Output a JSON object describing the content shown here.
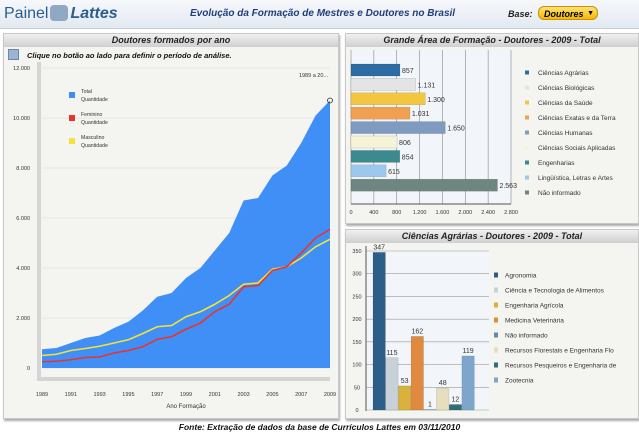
{
  "header": {
    "logo_a": "Painel",
    "logo_b": "Lattes",
    "title": "Evolução da Formação de Mestres e Doutores no Brasil",
    "base_label": "Base:",
    "base_value": "Doutores"
  },
  "footer": "Fonte: Extração de dados da base de Currículos Lattes em 03/11/2010",
  "colors": {
    "total": "#3f8ff7",
    "feminino": "#e8342c",
    "masculino": "#f5e23a"
  },
  "chart_data": [
    {
      "type": "area",
      "title": "Doutores formados por ano",
      "hint": "Clique no botão ao lado para definir o período de análise.",
      "range_label": "1989 a 20...",
      "xlabel": "Ano Formação",
      "ylim": [
        0,
        12000
      ],
      "yticks": [
        "0",
        "2.000",
        "4.000",
        "6.000",
        "8.000",
        "10.000",
        "12.000"
      ],
      "xticks": [
        "1989",
        "1991",
        "1993",
        "1995",
        "1997",
        "1999",
        "2001",
        "2003",
        "2005",
        "2007",
        "2009"
      ],
      "x": [
        1989,
        1990,
        1991,
        1992,
        1993,
        1994,
        1995,
        1996,
        1997,
        1998,
        1999,
        2000,
        2001,
        2002,
        2003,
        2004,
        2005,
        2006,
        2007,
        2008,
        2009
      ],
      "series": [
        {
          "name": "Total",
          "sub": "Quantidade",
          "values": [
            750,
            800,
            1000,
            1200,
            1300,
            1600,
            1850,
            2300,
            2850,
            3000,
            3600,
            4000,
            4700,
            5400,
            6700,
            6800,
            7700,
            8100,
            9000,
            10100,
            10700
          ]
        },
        {
          "name": "Feminino",
          "sub": "Quantidade",
          "values": [
            250,
            270,
            330,
            420,
            440,
            600,
            700,
            850,
            1150,
            1250,
            1550,
            1800,
            2250,
            2550,
            3250,
            3300,
            3900,
            4050,
            4600,
            5200,
            5550
          ]
        },
        {
          "name": "Masculino",
          "sub": "Quantidade",
          "values": [
            500,
            550,
            700,
            780,
            870,
            1000,
            1130,
            1380,
            1650,
            1700,
            2050,
            2250,
            2550,
            2900,
            3350,
            3400,
            3950,
            4050,
            4400,
            4850,
            5150
          ]
        }
      ]
    },
    {
      "type": "bar",
      "title": "Grande Área de Formação - Doutores - 2009 - Total",
      "orientation": "horizontal",
      "xlim": [
        0,
        2800
      ],
      "xticks": [
        "0",
        "400",
        "800",
        "1.200",
        "1.600",
        "2.000",
        "2.400",
        "2.800"
      ],
      "categories": [
        "Ciências Agrárias",
        "Ciências Biológicas",
        "Ciências da Saúde",
        "Ciências Exatas e da Terra",
        "Ciências Humanas",
        "Ciências Sociais Aplicadas",
        "Engenharias",
        "Lingüística, Letras e Artes",
        "Não informado"
      ],
      "values": [
        857,
        1131,
        1300,
        1031,
        1650,
        806,
        854,
        615,
        2563
      ],
      "labels": [
        "857",
        "1.131",
        "1.300",
        "1.031",
        "1.650",
        "806",
        "854",
        "615",
        "2.563"
      ],
      "colors": [
        "#2e6da4",
        "#e4e4e4",
        "#f3c640",
        "#f0a050",
        "#7f9cc0",
        "#f6f3d6",
        "#3d8a8e",
        "#9cc8ee",
        "#6f8580"
      ]
    },
    {
      "type": "bar",
      "title": "Ciências Agrárias - Doutores - 2009 - Total",
      "ylim": [
        0,
        350
      ],
      "yticks": [
        "0",
        "50",
        "100",
        "150",
        "200",
        "250",
        "300",
        "350"
      ],
      "categories": [
        "Agronomia",
        "Ciência e Tecnologia de Alimentos",
        "Engenharia Agrícola",
        "Medicina Veterinária",
        "Não informado",
        "Recursos Florestais e Engenharia Flo",
        "Recursos Pesqueiros e Engenharia de",
        "Zootecnia"
      ],
      "values": [
        347,
        115,
        53,
        162,
        1,
        48,
        12,
        119
      ],
      "colors": [
        "#2b5f8a",
        "#c8d0d8",
        "#d9b13c",
        "#e08a40",
        "#6a87a8",
        "#e5dfbd",
        "#2f6e72",
        "#7ea6cc"
      ]
    }
  ]
}
